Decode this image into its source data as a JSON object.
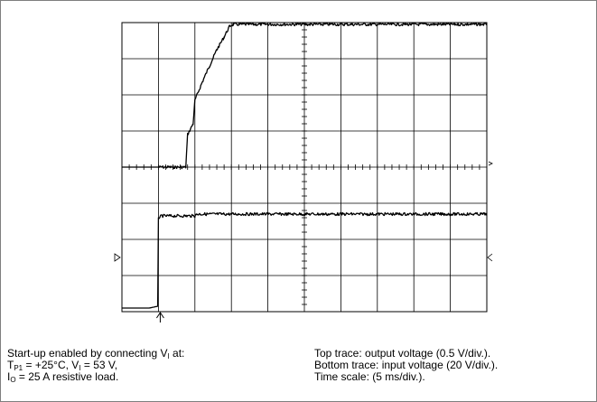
{
  "chart_data": {
    "type": "line",
    "grid": true,
    "divisions": {
      "x": 10,
      "y": 8
    },
    "minor_ticks_per_division": 5,
    "series": [
      {
        "name": "Top trace",
        "color": "#000000",
        "points": [
          [
            0,
            0
          ],
          [
            1.4,
            0
          ],
          [
            1.75,
            0
          ],
          [
            1.8,
            0.9
          ],
          [
            1.95,
            1.2
          ],
          [
            2.0,
            1.85
          ],
          [
            2.2,
            2.35
          ],
          [
            2.4,
            2.8
          ],
          [
            2.6,
            3.25
          ],
          [
            2.8,
            3.6
          ],
          [
            2.95,
            3.9
          ],
          [
            3.05,
            3.95
          ],
          [
            10,
            3.95
          ]
        ]
      },
      {
        "name": "Bottom trace",
        "color": "#000000",
        "points": [
          [
            0,
            -3.9
          ],
          [
            0.75,
            -3.9
          ],
          [
            0.98,
            -3.85
          ],
          [
            1.0,
            -1.4
          ],
          [
            1.1,
            -1.35
          ],
          [
            2.0,
            -1.35
          ],
          [
            2.05,
            -1.3
          ],
          [
            10,
            -1.3
          ]
        ]
      }
    ],
    "trigger_marker": "↑"
  },
  "caption_left": {
    "line1_text": "Start-up enabled by connecting V",
    "line1_sub": "I",
    "line1_end": " at:",
    "line2_a": "T",
    "line2_a_sub": "P1",
    "line2_b": " = +25°C, V",
    "line2_b_sub": "I",
    "line2_c": " = 53 V,",
    "line3_a": "I",
    "line3_a_sub": "O",
    "line3_b": " = 25 A resistive load."
  },
  "caption_right": {
    "line1": "Top trace: output voltage (0.5 V/div.).",
    "line2": "Bottom trace: input voltage (20 V/div.).",
    "line3": "Time scale: (5 ms/div.)."
  }
}
